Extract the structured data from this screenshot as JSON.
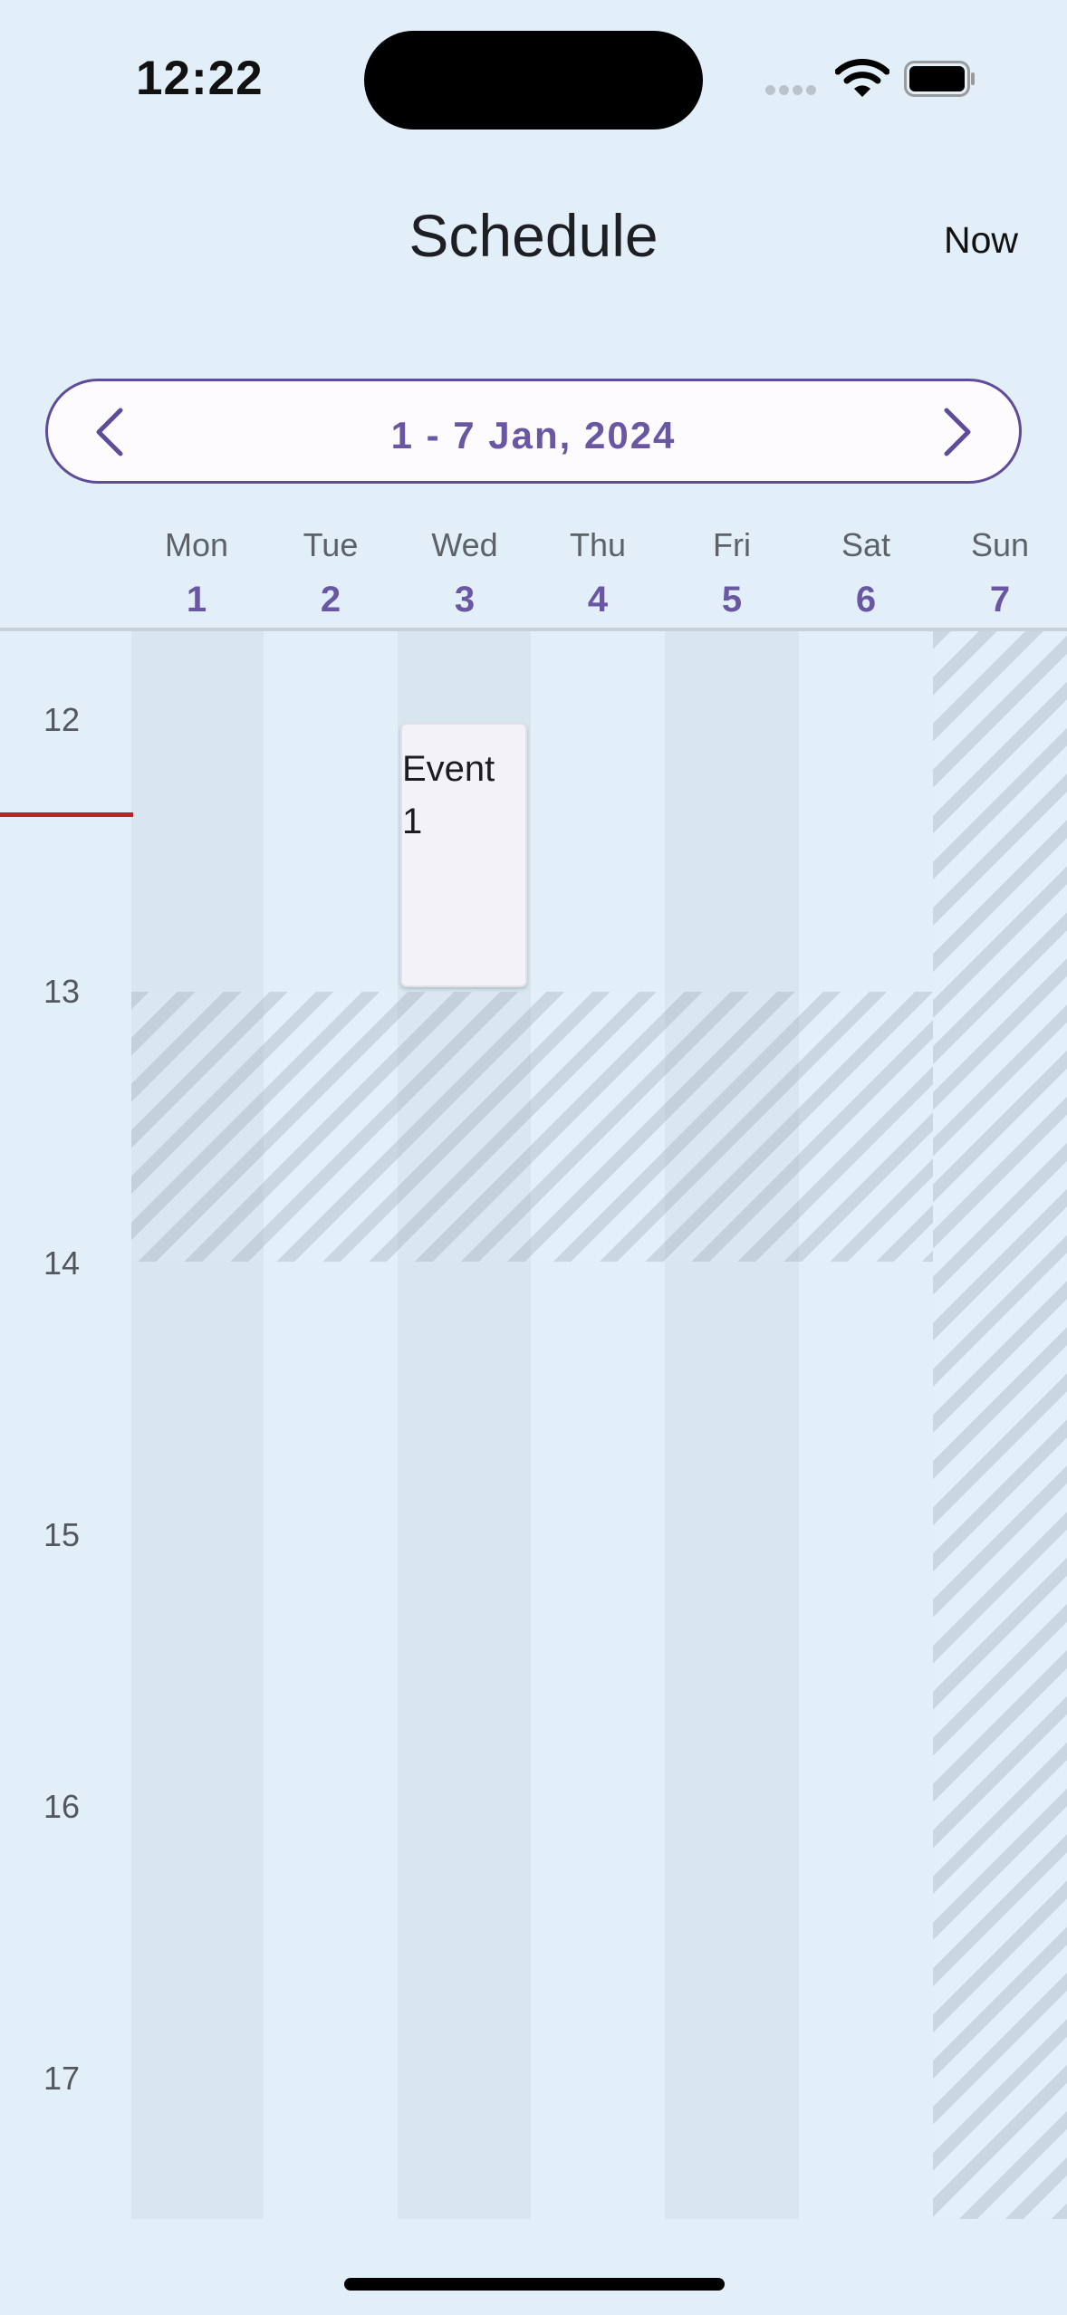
{
  "status_bar": {
    "time": "12:22"
  },
  "header": {
    "title": "Schedule",
    "now_label": "Now"
  },
  "range": {
    "label": "1 - 7 Jan, 2024"
  },
  "days": [
    {
      "dow": "Mon",
      "num": "1"
    },
    {
      "dow": "Tue",
      "num": "2"
    },
    {
      "dow": "Wed",
      "num": "3"
    },
    {
      "dow": "Thu",
      "num": "4"
    },
    {
      "dow": "Fri",
      "num": "5"
    },
    {
      "dow": "Sat",
      "num": "6"
    },
    {
      "dow": "Sun",
      "num": "7"
    }
  ],
  "hours": [
    "12",
    "13",
    "14",
    "15",
    "16",
    "17"
  ],
  "events": [
    {
      "title": "Event 1",
      "day": "Wed"
    }
  ],
  "colors": {
    "background": "#e2eff9",
    "accent": "#6a57a3",
    "now_line": "#b3262c",
    "event_bg": "#f3f2f8"
  },
  "icons": {
    "prev": "chevron-left-icon",
    "next": "chevron-right-icon",
    "wifi": "wifi-icon",
    "battery": "battery-icon",
    "signal": "cellular-signal-icon"
  }
}
